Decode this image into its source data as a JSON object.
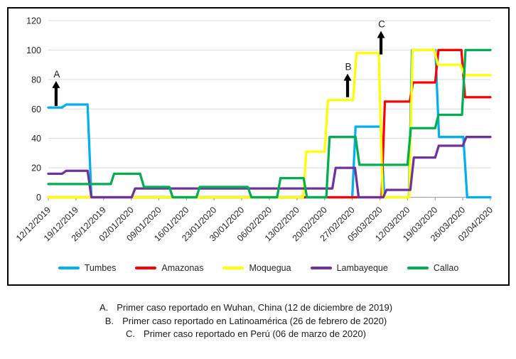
{
  "chart_data": {
    "type": "line",
    "subtype": "step",
    "title": "",
    "x_unit": "week_index (0 = first tick, 1 unit = 7 days)",
    "x_labels": [
      "12/12/2019",
      "19/12/2019",
      "26/12/2019",
      "02/01/2020",
      "09/01/2020",
      "16/01/2020",
      "23/01/2020",
      "30/01/2020",
      "06/02/2020",
      "13/02/2020",
      "20/02/2020",
      "27/02/2020",
      "05/03/2020",
      "12/03/2020",
      "19/03/2020",
      "26/03/2020",
      "02/04/2020"
    ],
    "y_axis": {
      "min": 0,
      "max": 120,
      "step": 20,
      "tick_labels": [
        "0",
        "20",
        "40",
        "60",
        "80",
        "100",
        "120"
      ]
    },
    "grid": "horizontal",
    "legend_position": "bottom",
    "series": [
      {
        "name": "Tumbes",
        "color": "#00B0F0",
        "points": [
          [
            0,
            61
          ],
          [
            0.5,
            61
          ],
          [
            0.65,
            63
          ],
          [
            1.42,
            63
          ],
          [
            1.56,
            0
          ],
          [
            11.0,
            0
          ],
          [
            11.12,
            48
          ],
          [
            12.03,
            48
          ],
          [
            12.16,
            0
          ],
          [
            13.05,
            0
          ],
          [
            13.16,
            100
          ],
          [
            14.01,
            100
          ],
          [
            14.14,
            41
          ],
          [
            15.02,
            41
          ],
          [
            15.16,
            0
          ],
          [
            16,
            0
          ]
        ]
      },
      {
        "name": "Amazonas",
        "color": "#FF0000",
        "points": [
          [
            0,
            0
          ],
          [
            12.06,
            0
          ],
          [
            12.18,
            65
          ],
          [
            13.08,
            65
          ],
          [
            13.2,
            78
          ],
          [
            14.0,
            78
          ],
          [
            14.12,
            100
          ],
          [
            14.95,
            100
          ],
          [
            15.08,
            68
          ],
          [
            16,
            68
          ]
        ]
      },
      {
        "name": "Moquegua",
        "color": "#FFFF00",
        "points": [
          [
            0,
            0
          ],
          [
            9.22,
            0
          ],
          [
            9.34,
            31
          ],
          [
            10.0,
            31
          ],
          [
            10.12,
            66
          ],
          [
            11.03,
            66
          ],
          [
            11.15,
            98
          ],
          [
            11.96,
            98
          ],
          [
            12.1,
            0
          ],
          [
            13.06,
            0
          ],
          [
            13.18,
            100
          ],
          [
            13.97,
            100
          ],
          [
            14.1,
            90
          ],
          [
            14.92,
            90
          ],
          [
            15.05,
            83
          ],
          [
            16,
            83
          ]
        ]
      },
      {
        "name": "Lambayeque",
        "color": "#7030A0",
        "points": [
          [
            0,
            16
          ],
          [
            0.5,
            16
          ],
          [
            0.65,
            18
          ],
          [
            1.42,
            18
          ],
          [
            1.56,
            0
          ],
          [
            3.02,
            0
          ],
          [
            3.14,
            6
          ],
          [
            10.28,
            6
          ],
          [
            10.4,
            20
          ],
          [
            11.1,
            20
          ],
          [
            11.23,
            0
          ],
          [
            12.12,
            0
          ],
          [
            12.24,
            5
          ],
          [
            13.1,
            5
          ],
          [
            13.23,
            27
          ],
          [
            14.0,
            27
          ],
          [
            14.13,
            35
          ],
          [
            15.0,
            35
          ],
          [
            15.13,
            41
          ],
          [
            16,
            41
          ]
        ]
      },
      {
        "name": "Callao",
        "color": "#00B050",
        "points": [
          [
            0,
            9
          ],
          [
            2.26,
            9
          ],
          [
            2.38,
            16
          ],
          [
            3.32,
            16
          ],
          [
            3.46,
            7
          ],
          [
            4.38,
            7
          ],
          [
            4.5,
            0
          ],
          [
            5.36,
            0
          ],
          [
            5.48,
            7
          ],
          [
            7.22,
            7
          ],
          [
            7.35,
            0
          ],
          [
            8.28,
            0
          ],
          [
            8.4,
            13
          ],
          [
            9.24,
            13
          ],
          [
            9.36,
            0
          ],
          [
            10.06,
            0
          ],
          [
            10.18,
            41
          ],
          [
            11.12,
            41
          ],
          [
            11.26,
            22
          ],
          [
            13.0,
            22
          ],
          [
            13.12,
            47
          ],
          [
            14.0,
            47
          ],
          [
            14.12,
            56
          ],
          [
            14.97,
            56
          ],
          [
            15.1,
            100
          ],
          [
            16,
            100
          ]
        ]
      }
    ],
    "annotations": [
      {
        "label": "A",
        "week": 0.28,
        "base_value": 62,
        "tip_value": 79
      },
      {
        "label": "B",
        "week": 10.83,
        "base_value": 68,
        "tip_value": 84
      },
      {
        "label": "C",
        "week": 12.04,
        "base_value": 97,
        "tip_value": 113
      }
    ]
  },
  "legend": {
    "items": [
      "Tumbes",
      "Amazonas",
      "Moquegua",
      "Lambayeque",
      "Callao"
    ]
  },
  "footnotes": [
    {
      "marker": "A.",
      "text": "Primer caso reportado en Wuhan, China (12 de diciembre de 2019)"
    },
    {
      "marker": "B.",
      "text": "Primer caso reportado en Latinoamérica (26 de febrero de 2020)"
    },
    {
      "marker": "C.",
      "text": "Primer caso reportado en Perú (06 de marzo de 2020)"
    }
  ],
  "colors": {
    "gridline": "#D9D9D9",
    "axis": "#A6A6A6",
    "axis_text": "#262626",
    "annotation": "#000000",
    "chart_border": "#000000"
  }
}
